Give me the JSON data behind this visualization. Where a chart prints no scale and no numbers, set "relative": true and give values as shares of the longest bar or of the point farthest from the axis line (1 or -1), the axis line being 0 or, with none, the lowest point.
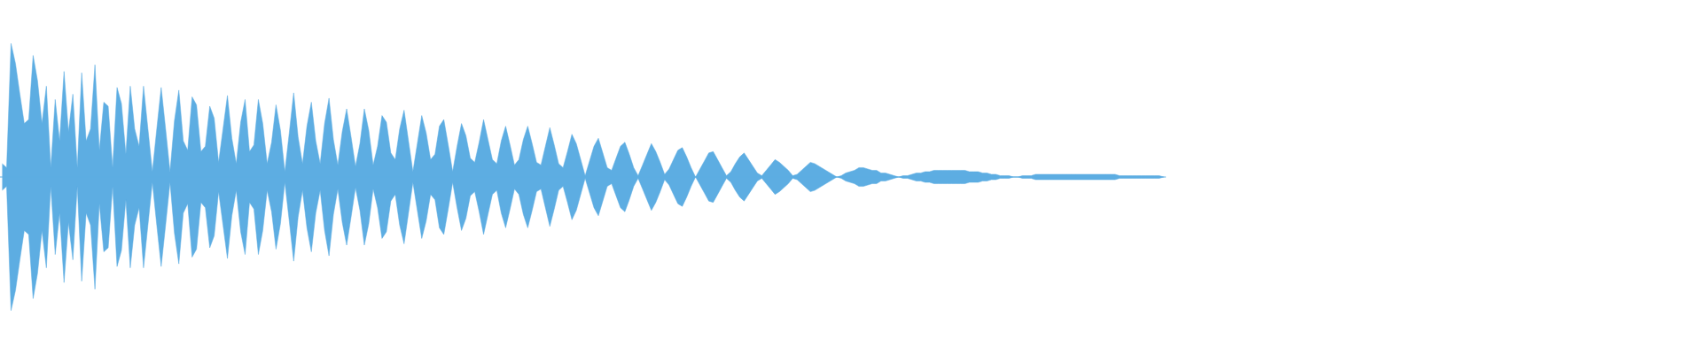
{
  "chart_data": {
    "type": "area",
    "relative": true,
    "ref_lines": [
      {
        "axis": "y",
        "value": 0,
        "color": "#5dade2"
      }
    ],
    "categories": [
      null,
      null,
      null,
      null,
      null,
      null,
      null,
      null,
      null,
      null,
      null,
      null,
      null,
      null,
      null,
      null,
      null,
      null,
      null,
      null,
      null,
      null,
      null,
      null,
      null,
      null,
      null,
      null,
      null,
      null,
      null,
      null,
      null,
      null,
      null,
      null,
      null,
      null,
      null,
      null,
      null,
      null,
      null,
      null,
      null,
      null,
      null,
      null,
      null,
      null,
      null,
      null,
      null,
      null,
      null,
      null,
      null,
      null,
      null,
      null,
      null,
      null,
      null,
      null,
      null,
      null,
      null,
      null,
      null,
      null,
      null,
      null,
      null,
      null,
      null,
      null,
      null,
      null,
      null,
      null,
      null,
      null,
      null,
      null,
      null,
      null,
      null,
      null,
      null,
      null,
      null,
      null,
      null,
      null,
      null,
      null,
      null,
      null,
      null,
      null,
      null,
      null,
      null,
      null,
      null,
      null,
      null,
      null,
      null,
      null,
      null,
      null,
      null,
      null,
      null,
      null,
      null,
      null,
      null,
      null,
      null,
      null,
      null,
      null,
      null,
      null,
      null,
      null,
      null,
      null,
      null,
      null,
      null,
      null,
      null,
      null,
      null,
      null,
      null,
      null,
      null,
      null,
      null,
      null,
      null,
      null,
      null,
      null,
      null,
      null,
      null,
      null,
      null,
      null,
      null,
      null,
      null,
      null,
      null,
      null,
      null,
      null,
      null,
      null,
      null,
      null,
      null,
      null,
      null,
      null,
      null,
      null,
      null,
      null,
      null,
      null,
      null,
      null,
      null,
      null,
      null,
      null,
      null,
      null,
      null,
      null,
      null,
      null,
      null,
      null,
      null,
      null,
      null,
      null,
      null,
      null,
      null,
      null,
      null,
      null,
      null,
      null,
      null,
      null,
      null,
      null,
      null,
      null,
      null,
      null,
      null,
      null,
      null,
      null,
      null,
      null,
      null,
      null,
      null,
      null,
      null,
      null,
      null,
      null,
      null,
      null,
      null,
      null,
      null,
      null,
      null,
      null,
      null,
      null,
      null,
      null,
      null,
      null,
      null,
      null,
      null,
      null,
      null,
      null,
      null,
      null,
      null,
      null,
      null,
      null,
      null,
      null,
      null,
      null,
      null,
      null,
      null,
      null,
      null,
      null,
      null,
      null,
      null,
      null
    ],
    "series": [
      {
        "color": "#5dade2",
        "values": [
          0.1,
          0.07,
          1.0,
          0.85,
          0.62,
          0.4,
          0.43,
          0.91,
          0.72,
          0.4,
          0.68,
          0.07,
          0.58,
          0.27,
          0.79,
          0.34,
          0.62,
          0.07,
          0.78,
          0.27,
          0.36,
          0.84,
          0.2,
          0.56,
          0.53,
          0.07,
          0.67,
          0.55,
          0.17,
          0.68,
          0.36,
          0.23,
          0.68,
          0.36,
          0.04,
          0.36,
          0.67,
          0.36,
          0.04,
          0.42,
          0.65,
          0.27,
          0.2,
          0.6,
          0.54,
          0.19,
          0.23,
          0.53,
          0.44,
          0.11,
          0.36,
          0.61,
          0.29,
          0.1,
          0.41,
          0.58,
          0.19,
          0.24,
          0.58,
          0.4,
          0.1,
          0.26,
          0.54,
          0.35,
          0.04,
          0.33,
          0.63,
          0.3,
          0.1,
          0.38,
          0.56,
          0.27,
          0.1,
          0.4,
          0.59,
          0.28,
          0.09,
          0.34,
          0.51,
          0.3,
          0.08,
          0.25,
          0.51,
          0.35,
          0.09,
          0.23,
          0.46,
          0.41,
          0.18,
          0.13,
          0.36,
          0.5,
          0.27,
          0.04,
          0.25,
          0.46,
          0.33,
          0.13,
          0.17,
          0.38,
          0.43,
          0.24,
          0.04,
          0.23,
          0.4,
          0.31,
          0.14,
          0.11,
          0.26,
          0.43,
          0.28,
          0.13,
          0.1,
          0.27,
          0.38,
          0.24,
          0.09,
          0.13,
          0.28,
          0.38,
          0.25,
          0.11,
          0.09,
          0.23,
          0.37,
          0.24,
          0.1,
          0.07,
          0.19,
          0.32,
          0.25,
          0.13,
          0.01,
          0.12,
          0.23,
          0.29,
          0.18,
          0.07,
          0.05,
          0.14,
          0.23,
          0.26,
          0.17,
          0.07,
          0.01,
          0.09,
          0.17,
          0.25,
          0.19,
          0.11,
          0.02,
          0.06,
          0.13,
          0.2,
          0.22,
          0.15,
          0.07,
          0,
          0.06,
          0.12,
          0.18,
          0.19,
          0.13,
          0.07,
          0.01,
          0.04,
          0.1,
          0.15,
          0.18,
          0.13,
          0.08,
          0.03,
          0.01,
          0.05,
          0.09,
          0.13,
          0.11,
          0.08,
          0.05,
          0.01,
          0.02,
          0.05,
          0.08,
          0.11,
          0.1,
          0.08,
          0.06,
          0.04,
          0.02,
          0,
          0.01,
          0.03,
          0.04,
          0.05,
          0.07,
          0.07,
          0.06,
          0.05,
          0.05,
          0.03,
          0.03,
          0.02,
          0.01,
          0,
          0.01,
          0.01,
          0.02,
          0.03,
          0.03,
          0.04,
          0.04,
          0.05,
          0.05,
          0.05,
          0.05,
          0.05,
          0.05,
          0.05,
          0.05,
          0.04,
          0.04,
          0.04,
          0.03,
          0.03,
          0.02,
          0.02,
          0.01,
          0.01,
          0.01,
          0,
          0,
          0.01,
          0.01,
          0.01,
          0.02,
          0.02,
          0.02,
          0.02,
          0.02,
          0.02,
          0.02,
          0.02,
          0.02,
          0.02,
          0.02,
          0.02,
          0.02,
          0.02,
          0.02,
          0.02,
          0.02,
          0.02,
          0.02,
          0.01,
          0.01,
          0.01,
          0.01,
          0.01,
          0.01,
          0.01,
          0.01,
          0.01,
          0.01,
          0
        ]
      },
      {
        "color": "#5dade2",
        "values": [
          -0.1,
          -0.07,
          -1.0,
          -0.85,
          -0.62,
          -0.4,
          -0.43,
          -0.91,
          -0.72,
          -0.4,
          -0.68,
          -0.07,
          -0.58,
          -0.27,
          -0.79,
          -0.34,
          -0.62,
          -0.07,
          -0.78,
          -0.27,
          -0.36,
          -0.84,
          -0.2,
          -0.56,
          -0.53,
          -0.07,
          -0.67,
          -0.55,
          -0.17,
          -0.68,
          -0.36,
          -0.23,
          -0.68,
          -0.36,
          -0.04,
          -0.36,
          -0.67,
          -0.36,
          -0.04,
          -0.42,
          -0.65,
          -0.27,
          -0.2,
          -0.6,
          -0.54,
          -0.19,
          -0.23,
          -0.53,
          -0.44,
          -0.11,
          -0.36,
          -0.61,
          -0.29,
          -0.1,
          -0.41,
          -0.58,
          -0.19,
          -0.24,
          -0.58,
          -0.4,
          -0.1,
          -0.26,
          -0.54,
          -0.35,
          -0.04,
          -0.33,
          -0.63,
          -0.3,
          -0.1,
          -0.38,
          -0.56,
          -0.27,
          -0.1,
          -0.4,
          -0.59,
          -0.28,
          -0.09,
          -0.34,
          -0.51,
          -0.3,
          -0.08,
          -0.25,
          -0.51,
          -0.35,
          -0.09,
          -0.23,
          -0.46,
          -0.41,
          -0.18,
          -0.13,
          -0.36,
          -0.5,
          -0.27,
          -0.04,
          -0.25,
          -0.46,
          -0.33,
          -0.13,
          -0.17,
          -0.38,
          -0.43,
          -0.24,
          -0.04,
          -0.23,
          -0.4,
          -0.31,
          -0.14,
          -0.11,
          -0.26,
          -0.43,
          -0.28,
          -0.13,
          -0.1,
          -0.27,
          -0.38,
          -0.24,
          -0.09,
          -0.13,
          -0.28,
          -0.38,
          -0.25,
          -0.11,
          -0.09,
          -0.23,
          -0.37,
          -0.24,
          -0.1,
          -0.07,
          -0.19,
          -0.32,
          -0.25,
          -0.13,
          -0.01,
          -0.12,
          -0.23,
          -0.29,
          -0.18,
          -0.07,
          -0.05,
          -0.14,
          -0.23,
          -0.26,
          -0.17,
          -0.07,
          -0.01,
          -0.09,
          -0.17,
          -0.25,
          -0.19,
          -0.11,
          -0.02,
          -0.06,
          -0.13,
          -0.2,
          -0.22,
          -0.15,
          -0.07,
          0,
          -0.06,
          -0.12,
          -0.18,
          -0.19,
          -0.13,
          -0.07,
          -0.01,
          -0.04,
          -0.1,
          -0.15,
          -0.18,
          -0.13,
          -0.08,
          -0.03,
          -0.01,
          -0.05,
          -0.09,
          -0.13,
          -0.11,
          -0.08,
          -0.05,
          -0.01,
          -0.02,
          -0.05,
          -0.08,
          -0.11,
          -0.1,
          -0.08,
          -0.06,
          -0.04,
          -0.02,
          0,
          -0.01,
          -0.03,
          -0.04,
          -0.05,
          -0.07,
          -0.07,
          -0.06,
          -0.05,
          -0.05,
          -0.03,
          -0.03,
          -0.02,
          -0.01,
          0,
          -0.01,
          -0.01,
          -0.02,
          -0.03,
          -0.03,
          -0.04,
          -0.04,
          -0.05,
          -0.05,
          -0.05,
          -0.05,
          -0.05,
          -0.05,
          -0.05,
          -0.05,
          -0.04,
          -0.04,
          -0.04,
          -0.03,
          -0.03,
          -0.02,
          -0.02,
          -0.01,
          -0.01,
          -0.01,
          0,
          0,
          -0.01,
          -0.01,
          -0.01,
          -0.02,
          -0.02,
          -0.02,
          -0.02,
          -0.02,
          -0.02,
          -0.02,
          -0.02,
          -0.02,
          -0.02,
          -0.02,
          -0.02,
          -0.02,
          -0.02,
          -0.02,
          -0.02,
          -0.02,
          -0.02,
          -0.02,
          -0.01,
          -0.01,
          -0.01,
          -0.01,
          -0.01,
          -0.01,
          -0.01,
          -0.01,
          -0.01,
          -0.01,
          0
        ]
      }
    ]
  }
}
